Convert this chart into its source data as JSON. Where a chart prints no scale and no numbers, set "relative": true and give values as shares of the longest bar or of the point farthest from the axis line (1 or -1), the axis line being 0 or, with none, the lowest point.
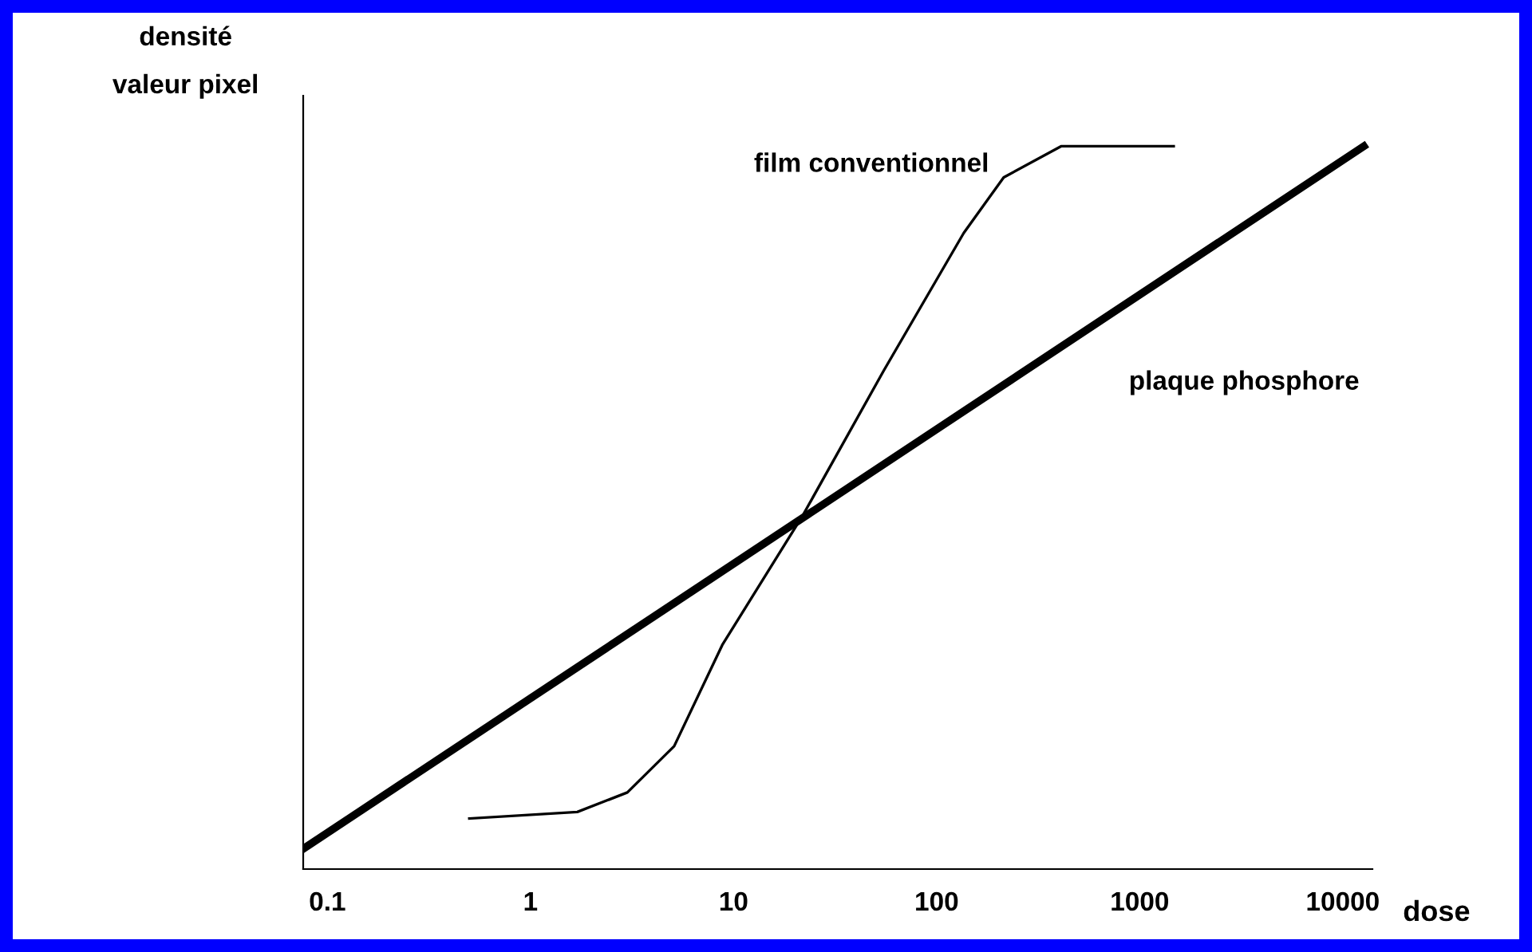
{
  "chart_data": {
    "type": "line",
    "relative": true,
    "xlabel": "dose",
    "ylabel": "densité\nvaleur pixel",
    "log": "x",
    "xlim": [
      0.076,
      14000
    ],
    "xticks": [
      0.1,
      1,
      10,
      100,
      1000,
      10000
    ],
    "tick_labels": "x",
    "grid": false,
    "legend": false,
    "marker": "none",
    "line_style": "solid",
    "series": [
      {
        "name": "film conventionnel",
        "color": "#000000",
        "x": [
          0.5,
          1.7,
          3,
          5.1,
          8.8,
          22,
          55,
          136,
          214,
          410,
          1470
        ],
        "values": [
          0.07,
          0.079,
          0.106,
          0.17,
          0.31,
          0.49,
          0.69,
          0.88,
          0.957,
          1.0,
          1.0
        ]
      },
      {
        "name": "plaque phosphore",
        "color": "#000000",
        "x": [
          0.076,
          12700
        ],
        "values": [
          0.028,
          1.0
        ]
      }
    ]
  }
}
